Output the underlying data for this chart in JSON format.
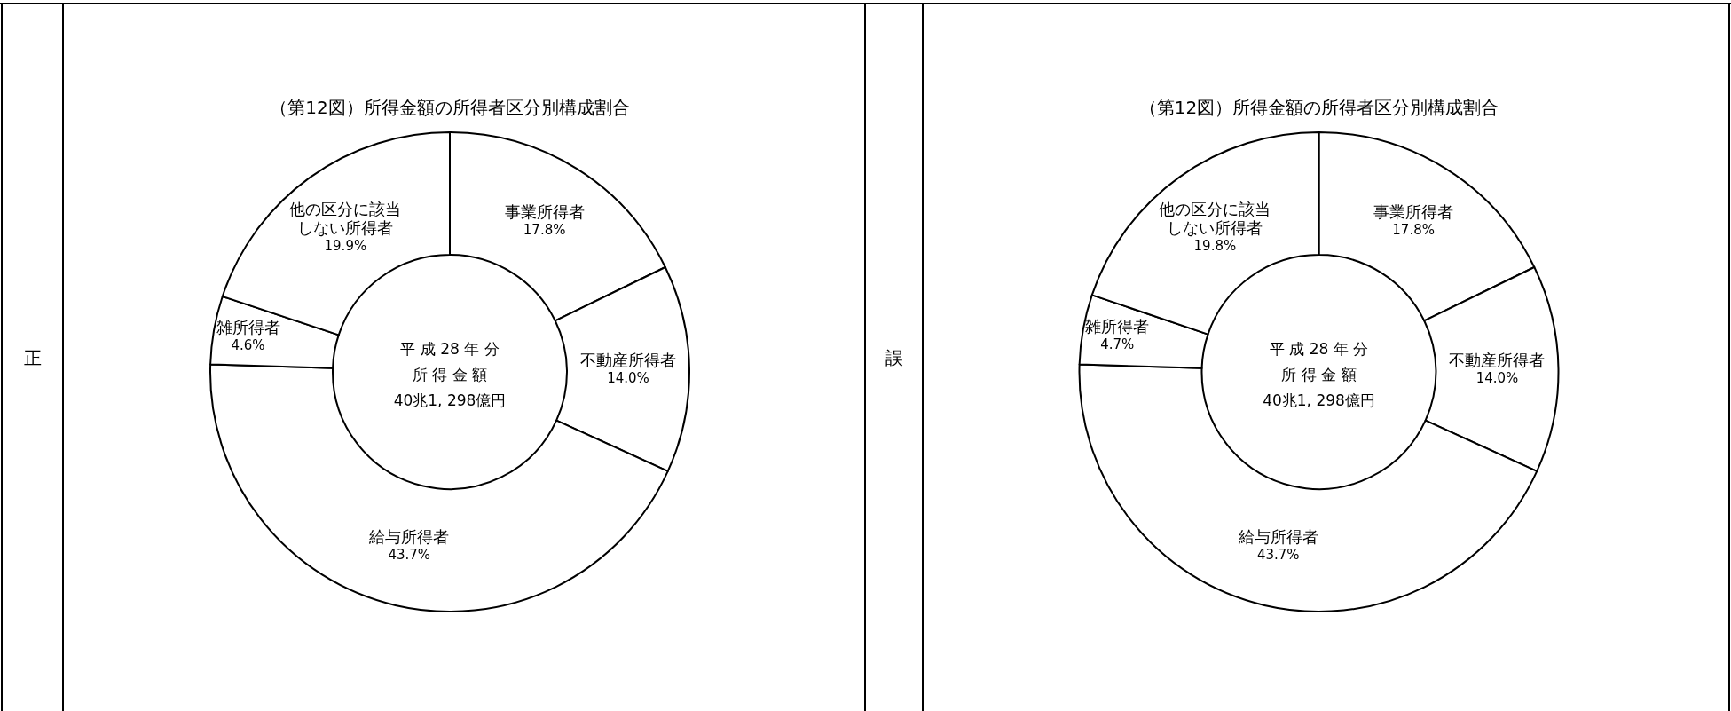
{
  "chart_data": [
    {
      "type": "donut",
      "title": "（第12図）所得金額の所得者区分別構成割合",
      "categories": [
        "事業所得者",
        "不動産所得者",
        "給与所得者",
        "雑所得者",
        "他の区分に該当しない所得者"
      ],
      "values": [
        17.8,
        14.0,
        43.7,
        4.6,
        19.9
      ],
      "value_labels": [
        "17.8%",
        "14.0%",
        "43.7%",
        "4.6%",
        "19.9%"
      ],
      "colors": [
        "#ffffff",
        "#ffffff",
        "#ffffff",
        "#ffffff",
        "#ffffff"
      ],
      "annotations": [
        "正",
        "平 成 28 年 分",
        "所 得 金 額",
        "40兆1, 298億円"
      ]
    },
    {
      "type": "donut",
      "title": "（第12図）所得金額の所得者区分別構成割合",
      "categories": [
        "事業所得者",
        "不動産所得者",
        "給与所得者",
        "雑所得者",
        "他の区分に該当しない所得者"
      ],
      "values": [
        17.8,
        14.0,
        43.7,
        4.7,
        19.8
      ],
      "value_labels": [
        "17.8%",
        "14.0%",
        "43.7%",
        "4.7%",
        "19.8%"
      ],
      "colors": [
        "#ffffff",
        "#ffffff",
        "#ffffff",
        "#ffffff",
        "#ffffff"
      ],
      "annotations": [
        "誤",
        "平 成 28 年 分",
        "所 得 金 額",
        "40兆1, 298億円"
      ]
    }
  ]
}
